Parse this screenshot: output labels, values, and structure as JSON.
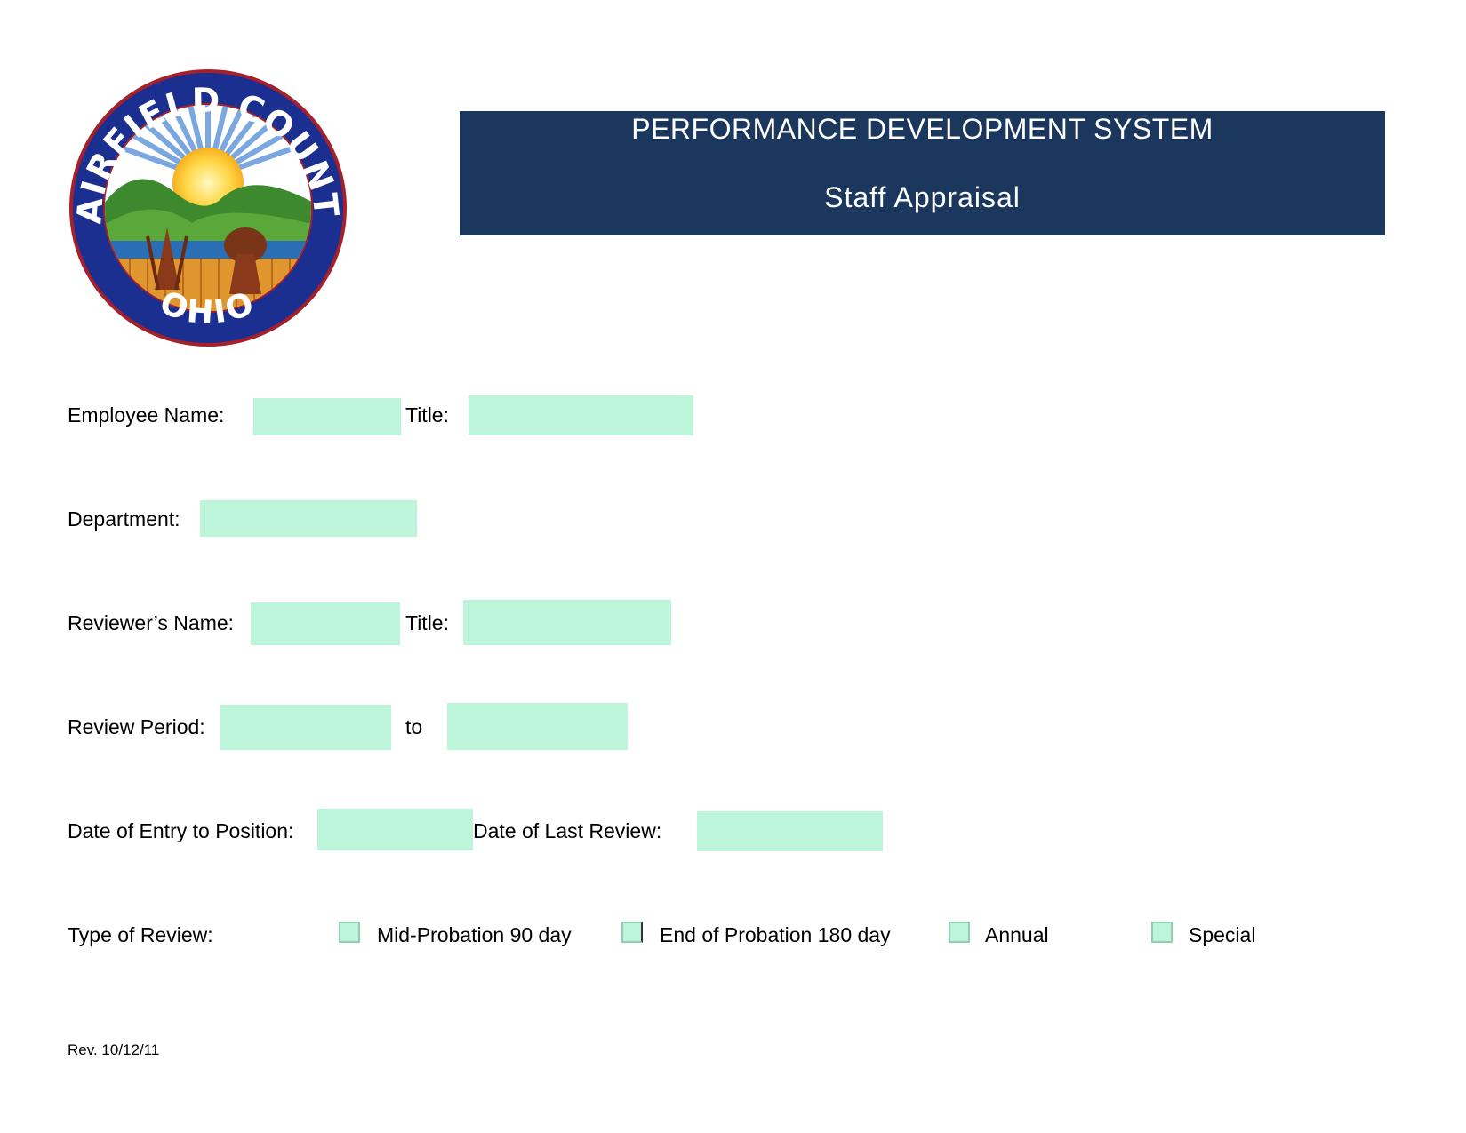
{
  "logo": {
    "top_text": "FAIRFIELD COUNTY",
    "bottom_text": "OHIO"
  },
  "header": {
    "title": "PERFORMANCE DEVELOPMENT SYSTEM",
    "subtitle": "Staff Appraisal"
  },
  "form": {
    "employee_name_label": "Employee Name:",
    "employee_name_value": "",
    "employee_title_label": "Title:",
    "employee_title_value": "",
    "department_label": "Department:",
    "department_value": "",
    "reviewer_name_label": "Reviewer’s Name:",
    "reviewer_name_value": "",
    "reviewer_title_label": "Title:",
    "reviewer_title_value": "",
    "review_period_label": "Review Period:",
    "review_period_from": "",
    "review_period_to_label": "to",
    "review_period_to": "",
    "date_entry_label": "Date of Entry to Position:",
    "date_entry_value": "",
    "date_last_review_label": "Date of Last Review:",
    "date_last_review_value": "",
    "type_of_review_label": "Type of Review:",
    "review_types": [
      {
        "label": "Mid-Probation 90 day",
        "checked": false
      },
      {
        "label": "End of Probation 180 day",
        "checked": false
      },
      {
        "label": "Annual",
        "checked": false
      },
      {
        "label": "Special",
        "checked": false
      }
    ]
  },
  "footer": {
    "revision": "Rev. 10/12/11"
  },
  "colors": {
    "header_bg": "#1b375d",
    "field_bg": "#bdf5da",
    "seal_ring": "#1a2f8f",
    "seal_border": "#a4202a"
  }
}
